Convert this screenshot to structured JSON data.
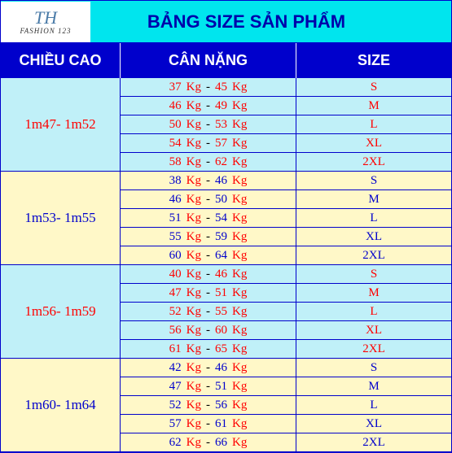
{
  "title": "BẢNG SIZE SẢN PHẨM",
  "logo": {
    "line1": "TH",
    "line2": "FASHION 123"
  },
  "headers": {
    "height": "CHIỀU CAO",
    "weight": "CÂN NẶNG",
    "size": "SIZE"
  },
  "colors": {
    "title_bg": "#00e5ee",
    "header_bg": "#0000cc",
    "blue_bg": "#c0f0f8",
    "yellow_bg": "#fff8c8",
    "red_text": "#ff0000",
    "blue_text": "#0000cc"
  },
  "unit": "Kg",
  "sep": "-",
  "groups": [
    {
      "height": "1m47- 1m52",
      "bg": "blue",
      "text": "red",
      "rows": [
        {
          "lo": 37,
          "hi": 45,
          "size": "S"
        },
        {
          "lo": 46,
          "hi": 49,
          "size": "M"
        },
        {
          "lo": 50,
          "hi": 53,
          "size": "L"
        },
        {
          "lo": 54,
          "hi": 57,
          "size": "XL"
        },
        {
          "lo": 58,
          "hi": 62,
          "size": "2XL"
        }
      ]
    },
    {
      "height": "1m53- 1m55",
      "bg": "yellow",
      "text": "blue",
      "rows": [
        {
          "lo": 38,
          "hi": 46,
          "size": "S"
        },
        {
          "lo": 46,
          "hi": 50,
          "size": "M"
        },
        {
          "lo": 51,
          "hi": 54,
          "size": "L"
        },
        {
          "lo": 55,
          "hi": 59,
          "size": "XL"
        },
        {
          "lo": 60,
          "hi": 64,
          "size": "2XL"
        }
      ]
    },
    {
      "height": "1m56- 1m59",
      "bg": "blue",
      "text": "red",
      "rows": [
        {
          "lo": 40,
          "hi": 46,
          "size": "S"
        },
        {
          "lo": 47,
          "hi": 51,
          "size": "M"
        },
        {
          "lo": 52,
          "hi": 55,
          "size": "L"
        },
        {
          "lo": 56,
          "hi": 60,
          "size": "XL"
        },
        {
          "lo": 61,
          "hi": 65,
          "size": "2XL"
        }
      ]
    },
    {
      "height": "1m60- 1m64",
      "bg": "yellow",
      "text": "blue",
      "rows": [
        {
          "lo": 42,
          "hi": 46,
          "size": "S"
        },
        {
          "lo": 47,
          "hi": 51,
          "size": "M"
        },
        {
          "lo": 52,
          "hi": 56,
          "size": "L"
        },
        {
          "lo": 57,
          "hi": 61,
          "size": "XL"
        },
        {
          "lo": 62,
          "hi": 66,
          "size": "2XL"
        }
      ]
    }
  ]
}
